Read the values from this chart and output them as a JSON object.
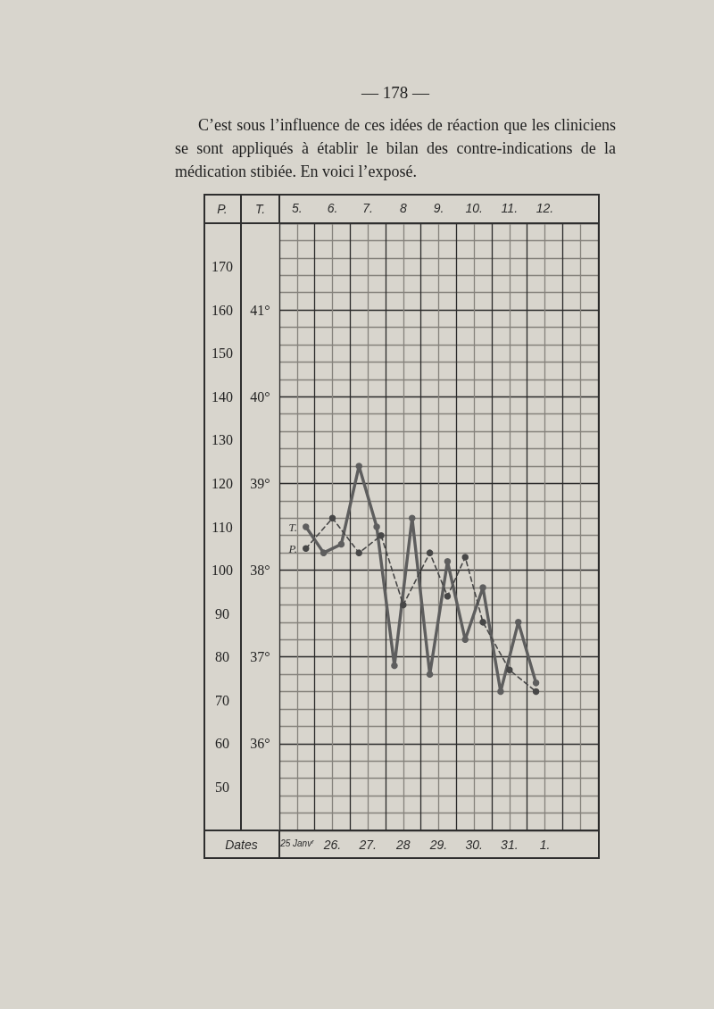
{
  "chart_data": {
    "type": "line",
    "title": "C’est sous l’influence de ces idées de réaction que les cliniciens se sont appliqués à établir le bilan des contre-indications de la médication stibiée. En voici l’exposé.",
    "annotations": [
      "— 178 —"
    ],
    "xlabel": "Dates",
    "ylabel": "T.",
    "y2label": "P.",
    "xlim": [
      "--01-25T00:00",
      "--02-03T00:00"
    ],
    "xticks": [
      {
        "value": "--01-25T00:00",
        "label": null
      },
      {
        "value": "--01-25T12:00",
        "label": "25 Janv$^{r}$"
      },
      {
        "value": "--01-26T00:00",
        "label": null
      },
      {
        "value": "--01-26T12:00",
        "label": "26."
      },
      {
        "value": "--01-27T00:00",
        "label": null
      },
      {
        "value": "--01-27T12:00",
        "label": "27."
      },
      {
        "value": "--01-28T00:00",
        "label": null
      },
      {
        "value": "--01-28T12:00",
        "label": "28"
      },
      {
        "value": "--01-29T00:00",
        "label": null
      },
      {
        "value": "--01-29T12:00",
        "label": "29."
      },
      {
        "value": "--01-30T00:00",
        "label": null
      },
      {
        "value": "--01-30T12:00",
        "label": "30."
      },
      {
        "value": "--01-31T00:00",
        "label": null
      },
      {
        "value": "--01-31T12:00",
        "label": "31."
      },
      {
        "value": "--02-01T00:00",
        "label": null
      },
      {
        "value": "--02-01T12:00",
        "label": "1."
      },
      {
        "value": "--02-02T00:00",
        "label": null
      },
      {
        "value": "--02-02T12:00",
        "label": null
      },
      {
        "value": "--02-03T00:00",
        "label": null
      }
    ],
    "x2lim": [
      4.5,
      13.5
    ],
    "x2ticks": [
      {
        "value": 5,
        "label": "5."
      },
      {
        "value": 6,
        "label": "6."
      },
      {
        "value": 7,
        "label": "7."
      },
      {
        "value": 8,
        "label": "8"
      },
      {
        "value": 9,
        "label": "9."
      },
      {
        "value": 10,
        "label": "10."
      },
      {
        "value": 11,
        "label": "11."
      },
      {
        "value": 12,
        "label": "12."
      }
    ],
    "ylim": [
      35,
      42
    ],
    "yticks": [
      {
        "value": 35,
        "label": null
      },
      {
        "value": 35.2,
        "label": null
      },
      {
        "value": 35.4,
        "label": null
      },
      {
        "value": 35.6,
        "label": null
      },
      {
        "value": 35.8,
        "label": null
      },
      {
        "value": 36,
        "label": "36°"
      },
      {
        "value": 36.2,
        "label": null
      },
      {
        "value": 36.4,
        "label": null
      },
      {
        "value": 36.6,
        "label": null
      },
      {
        "value": 36.8,
        "label": null
      },
      {
        "value": 37,
        "label": "37°"
      },
      {
        "value": 37.2,
        "label": null
      },
      {
        "value": 37.4,
        "label": null
      },
      {
        "value": 37.6,
        "label": null
      },
      {
        "value": 37.8,
        "label": null
      },
      {
        "value": 38,
        "label": "38°"
      },
      {
        "value": 38.2,
        "label": null
      },
      {
        "value": 38.4,
        "label": null
      },
      {
        "value": 38.6,
        "label": null
      },
      {
        "value": 38.8,
        "label": null
      },
      {
        "value": 39,
        "label": "39°"
      },
      {
        "value": 39.2,
        "label": null
      },
      {
        "value": 39.4,
        "label": null
      },
      {
        "value": 39.6,
        "label": null
      },
      {
        "value": 39.8,
        "label": null
      },
      {
        "value": 40,
        "label": "40°"
      },
      {
        "value": 40.2,
        "label": null
      },
      {
        "value": 40.4,
        "label": null
      },
      {
        "value": 40.6,
        "label": null
      },
      {
        "value": 40.8,
        "label": null
      },
      {
        "value": 41,
        "label": "41°"
      },
      {
        "value": 41.2,
        "label": null
      },
      {
        "value": 41.4,
        "label": null
      },
      {
        "value": 41.6,
        "label": null
      },
      {
        "value": 41.8,
        "label": null
      },
      {
        "value": 42,
        "label": null
      }
    ],
    "y2lim": [
      40,
      180
    ],
    "y2ticks": [
      50,
      60,
      70,
      80,
      90,
      100,
      110,
      120,
      130,
      140,
      150,
      160,
      170
    ],
    "grid": true,
    "marker": "circle",
    "series": [
      {
        "name": "T.",
        "color": "#5e5e5e",
        "line_style": "solid",
        "x": [
          "--01-25T18:00",
          "--01-26T06:00",
          "--01-26T18:00",
          "--01-27T06:00",
          "--01-27T18:00",
          "--01-28T06:00",
          "--01-28T18:00",
          "--01-29T06:00",
          "--01-29T18:00",
          "--01-30T06:00",
          "--01-30T18:00",
          "--01-31T06:00",
          "--01-31T18:00",
          "--02-01T06:00"
        ],
        "values": [
          38.5,
          38.2,
          38.3,
          39.2,
          38.5,
          36.9,
          38.6,
          36.8,
          38.1,
          37.2,
          37.8,
          36.6,
          37.4,
          36.7
        ]
      },
      {
        "name": "P.",
        "color": "#474747",
        "line_style": "dashed",
        "axis": "y2",
        "x": [
          "--01-25T18:00",
          "--01-26T12:00",
          "--01-27T06:00",
          "--01-27T21:00",
          "--01-28T12:00",
          "--01-29T06:00",
          "--01-29T18:00",
          "--01-30T06:00",
          "--01-30T18:00",
          "--01-31T12:00",
          "--02-01T06:00"
        ],
        "values": [
          105,
          112,
          104,
          108,
          92,
          104,
          94,
          103,
          88,
          77,
          72
        ]
      }
    ]
  }
}
